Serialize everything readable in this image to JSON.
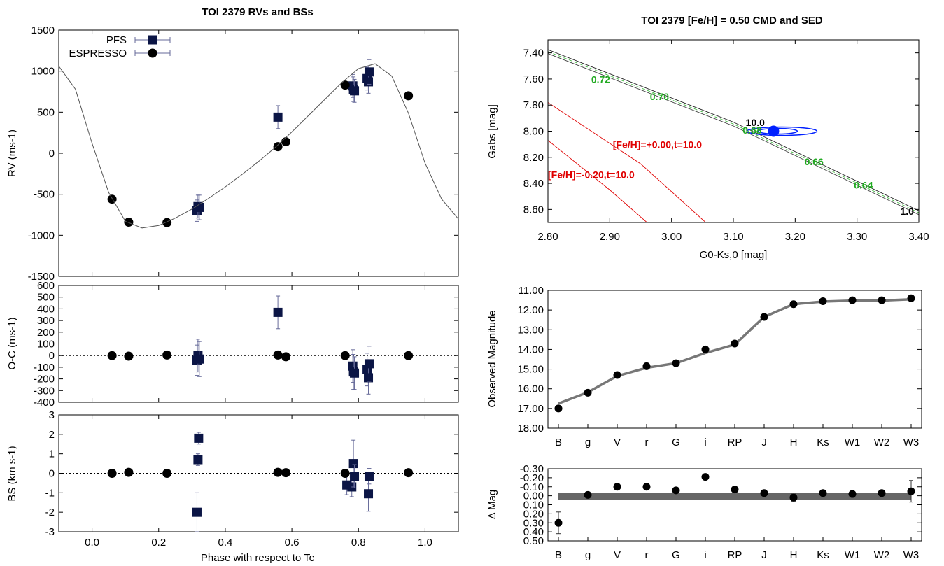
{
  "chart_data": [
    {
      "id": "rv",
      "type": "scatter",
      "title": "TOI 2379 RVs and BSs",
      "xlabel": "",
      "ylabel": "RV (ms-1)",
      "xlim": [
        -0.1,
        1.1
      ],
      "ylim": [
        -1500,
        1500
      ],
      "yticks": [
        "-1500",
        "-1000",
        "-500",
        "0",
        "500",
        "1000",
        "1500"
      ],
      "legend_position": "top-left",
      "series": [
        {
          "name": "PFS",
          "marker": "square",
          "color": "#0b1545",
          "x": [
            0.315,
            0.318,
            0.322,
            0.558,
            0.783,
            0.785,
            0.788,
            0.826,
            0.83,
            0.832
          ],
          "y": [
            -700,
            -650,
            -660,
            440,
            820,
            780,
            760,
            910,
            870,
            990
          ],
          "err": [
            130,
            140,
            150,
            140,
            140,
            150,
            140,
            140,
            140,
            150
          ]
        },
        {
          "name": "ESPRESSO",
          "marker": "circle",
          "color": "#000000",
          "x": [
            0.06,
            0.11,
            0.225,
            0.558,
            0.582,
            0.76,
            0.95
          ],
          "y": [
            -560,
            -840,
            -845,
            80,
            140,
            830,
            700
          ]
        },
        {
          "name": "",
          "marker": "line",
          "color": "#555555",
          "x": [
            -0.1,
            -0.05,
            0.0,
            0.05,
            0.1,
            0.15,
            0.2,
            0.25,
            0.3,
            0.35,
            0.4,
            0.45,
            0.5,
            0.55,
            0.6,
            0.65,
            0.7,
            0.75,
            0.8,
            0.85,
            0.9,
            0.95,
            1.0,
            1.05,
            1.1
          ],
          "y": [
            1060,
            780,
            120,
            -480,
            -830,
            -910,
            -880,
            -790,
            -680,
            -550,
            -410,
            -260,
            -100,
            70,
            260,
            460,
            660,
            860,
            1030,
            1090,
            940,
            490,
            -120,
            -560,
            -800
          ]
        }
      ]
    },
    {
      "id": "oc",
      "type": "scatter",
      "ylabel": "O-C (ms-1)",
      "xlim": [
        -0.1,
        1.1
      ],
      "ylim": [
        -400,
        600
      ],
      "yticks": [
        "-400",
        "-300",
        "-200",
        "-100",
        "0",
        "100",
        "200",
        "300",
        "400",
        "500",
        "600"
      ],
      "series": [
        {
          "name": "PFS",
          "marker": "square",
          "color": "#0b1545",
          "x": [
            0.315,
            0.318,
            0.322,
            0.558,
            0.783,
            0.785,
            0.788,
            0.826,
            0.83,
            0.832
          ],
          "y": [
            -40,
            0,
            -30,
            370,
            -90,
            -140,
            -150,
            -120,
            -190,
            -70
          ],
          "err": [
            130,
            140,
            150,
            140,
            140,
            150,
            140,
            140,
            140,
            150
          ]
        },
        {
          "name": "ESPRESSO",
          "marker": "circle",
          "color": "#000000",
          "x": [
            0.06,
            0.11,
            0.225,
            0.558,
            0.582,
            0.76,
            0.95
          ],
          "y": [
            0,
            -5,
            5,
            5,
            -10,
            0,
            0
          ]
        }
      ]
    },
    {
      "id": "bs",
      "type": "scatter",
      "xlabel": "Phase with respect to Tc",
      "ylabel": "BS (km s-1)",
      "xlim": [
        -0.1,
        1.1
      ],
      "ylim": [
        -3,
        3
      ],
      "xticks": [
        "0.0",
        "0.2",
        "0.4",
        "0.6",
        "0.8",
        "1.0"
      ],
      "yticks": [
        "-3",
        "-2",
        "-1",
        "0",
        "1",
        "2",
        "3"
      ],
      "series": [
        {
          "name": "PFS",
          "marker": "square",
          "color": "#0b1545",
          "x": [
            0.315,
            0.318,
            0.32,
            0.765,
            0.78,
            0.785,
            0.788,
            0.83,
            0.832
          ],
          "y": [
            -2.0,
            0.7,
            1.8,
            -0.6,
            -0.7,
            0.5,
            -0.15,
            -1.05,
            -0.15
          ],
          "err": [
            1.0,
            0.3,
            0.3,
            0.5,
            0.5,
            1.2,
            0.6,
            0.9,
            0.4
          ]
        },
        {
          "name": "ESPRESSO",
          "marker": "circle",
          "color": "#000000",
          "x": [
            0.06,
            0.11,
            0.225,
            0.558,
            0.582,
            0.76,
            0.95
          ],
          "y": [
            0.0,
            0.05,
            0.0,
            0.05,
            0.03,
            0.0,
            0.03
          ]
        }
      ]
    },
    {
      "id": "cmd",
      "type": "line",
      "title": "TOI 2379 [Fe/H] = 0.50 CMD and SED",
      "xlabel": "G0-Ks,0 [mag]",
      "ylabel": "Gabs [mag]",
      "xlim": [
        2.8,
        3.4
      ],
      "ylim": [
        8.7,
        7.3
      ],
      "xticks": [
        "2.80",
        "2.90",
        "3.00",
        "3.10",
        "3.20",
        "3.30",
        "3.40"
      ],
      "yticks": [
        "7.40",
        "7.60",
        "7.80",
        "8.00",
        "8.20",
        "8.40",
        "8.60"
      ],
      "point": {
        "x": 3.165,
        "y": 8.0,
        "color": "#0020ff"
      },
      "isochrone_labels": [
        {
          "text": "10.0",
          "x": 3.12,
          "y": 7.96,
          "color": "#000000"
        },
        {
          "text": "1.0",
          "x": 3.37,
          "y": 8.64,
          "color": "#000000"
        },
        {
          "text": "[Fe/H]=+0.00,t=10.0",
          "x": 2.905,
          "y": 8.13,
          "color": "#e00000"
        },
        {
          "text": "[Fe/H]=-0.20,t=10.0",
          "x": 2.8,
          "y": 8.36,
          "color": "#e00000"
        }
      ],
      "mass_labels": [
        {
          "text": "0.72",
          "x": 2.87,
          "y": 7.63
        },
        {
          "text": "0.70",
          "x": 2.965,
          "y": 7.76
        },
        {
          "text": "0.68",
          "x": 3.115,
          "y": 8.02
        },
        {
          "text": "0.66",
          "x": 3.215,
          "y": 8.26
        },
        {
          "text": "0.64",
          "x": 3.295,
          "y": 8.44
        }
      ],
      "series": [
        {
          "name": "",
          "color": "#222222",
          "x": [
            2.8,
            3.1,
            3.4
          ],
          "y": [
            7.375,
            7.93,
            8.61
          ]
        },
        {
          "name": "",
          "color": "#444444",
          "x": [
            2.8,
            3.1,
            3.4
          ],
          "y": [
            7.405,
            7.96,
            8.64
          ]
        },
        {
          "name": "",
          "color": "#44bb44",
          "x": [
            2.8,
            3.1,
            3.4
          ],
          "y": [
            7.39,
            7.945,
            8.625
          ]
        },
        {
          "name": "",
          "color": "#e00000",
          "x": [
            2.8,
            2.95,
            3.06
          ],
          "y": [
            7.78,
            8.25,
            8.72
          ]
        },
        {
          "name": "",
          "color": "#e00000",
          "x": [
            2.8,
            2.9,
            2.965
          ],
          "y": [
            8.07,
            8.45,
            8.72
          ]
        }
      ]
    },
    {
      "id": "sed",
      "type": "line",
      "ylabel": "Observed Magnitude",
      "categories": [
        "B",
        "g",
        "V",
        "r",
        "G",
        "i",
        "RP",
        "J",
        "H",
        "Ks",
        "W1",
        "W2",
        "W3"
      ],
      "ylim": [
        18.0,
        11.0
      ],
      "yticks": [
        "11.00",
        "12.00",
        "13.00",
        "14.00",
        "15.00",
        "16.00",
        "17.00",
        "18.00"
      ],
      "values": [
        17.0,
        16.2,
        15.3,
        14.85,
        14.7,
        14.0,
        13.7,
        12.35,
        11.7,
        11.55,
        11.5,
        11.5,
        11.4
      ],
      "model": [
        16.75,
        16.18,
        15.35,
        14.93,
        14.7,
        14.18,
        13.75,
        12.35,
        11.7,
        11.57,
        11.52,
        11.52,
        11.45
      ]
    },
    {
      "id": "resid",
      "type": "scatter",
      "ylabel": "Δ Mag",
      "categories": [
        "B",
        "g",
        "V",
        "r",
        "G",
        "i",
        "RP",
        "J",
        "H",
        "Ks",
        "W1",
        "W2",
        "W3"
      ],
      "ylim": [
        0.5,
        -0.3
      ],
      "yticks": [
        "-0.30",
        "-0.20",
        "-0.10",
        "0.00",
        "0.10",
        "0.20",
        "0.30",
        "0.40",
        "0.50"
      ],
      "values": [
        0.3,
        -0.01,
        -0.1,
        -0.1,
        -0.06,
        -0.21,
        -0.07,
        -0.03,
        0.02,
        -0.03,
        -0.02,
        -0.03,
        -0.05
      ],
      "err": [
        0.12,
        0.03,
        0.03,
        0.03,
        0.02,
        0.03,
        0.03,
        0.03,
        0.04,
        0.03,
        0.03,
        0.03,
        0.12
      ]
    }
  ]
}
